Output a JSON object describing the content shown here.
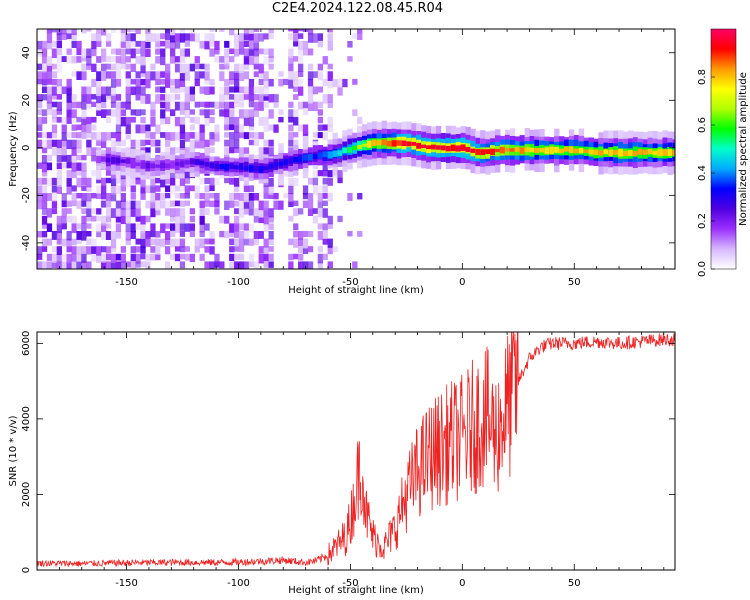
{
  "title": "C2E4.2024.122.08.45.R04",
  "chart_data": [
    {
      "type": "heatmap",
      "xlabel": "Height of straight line (km)",
      "ylabel": "Frequency (Hz)",
      "xlim": [
        -190,
        95
      ],
      "ylim": [
        -51,
        50
      ],
      "xticks": [
        -150,
        -100,
        -50,
        0,
        50
      ],
      "yticks": [
        -40,
        -20,
        0,
        20,
        40
      ],
      "colorbar": {
        "label": "Normalized spectral amplitude",
        "range": [
          0,
          1
        ],
        "ticks": [
          0.0,
          0.2,
          0.4,
          0.6,
          0.8
        ],
        "colormap": [
          "#ffffff",
          "#d6b8ff",
          "#9b30ff",
          "#5000e0",
          "#0000ff",
          "#00aaff",
          "#00ffcc",
          "#00ff00",
          "#b0ff00",
          "#ffff00",
          "#ff9900",
          "#ff0000",
          "#ff0066"
        ]
      },
      "ridge": {
        "x": [
          -160,
          -150,
          -140,
          -130,
          -120,
          -110,
          -100,
          -90,
          -80,
          -70,
          -65,
          -60,
          -55,
          -50,
          -45,
          -40,
          -35,
          -30,
          -25,
          -20,
          -15,
          -10,
          -5,
          0,
          5,
          10,
          15,
          20,
          30,
          40,
          50,
          60,
          70,
          80,
          95
        ],
        "y": [
          -5,
          -6,
          -8,
          -7,
          -6,
          -8,
          -8,
          -9,
          -6,
          -4,
          -3,
          -3,
          -2,
          0,
          1,
          2,
          2,
          2,
          2,
          1,
          0,
          0,
          0,
          0,
          -2,
          -2,
          -1,
          -1,
          -1,
          -1,
          -1,
          -2,
          -2,
          -2,
          -2
        ],
        "amplitude": [
          0.25,
          0.2,
          0.22,
          0.2,
          0.25,
          0.3,
          0.3,
          0.3,
          0.3,
          0.35,
          0.35,
          0.4,
          0.5,
          0.6,
          0.7,
          0.8,
          0.85,
          0.9,
          0.95,
          0.95,
          0.95,
          0.95,
          0.95,
          0.95,
          0.9,
          0.9,
          0.85,
          0.85,
          0.8,
          0.8,
          0.8,
          0.8,
          0.8,
          0.8,
          0.8
        ]
      }
    },
    {
      "type": "line",
      "xlabel": "Height of straight line (km)",
      "ylabel": "SNR (10 * v/v)",
      "xlim": [
        -190,
        95
      ],
      "ylim": [
        0,
        6300
      ],
      "xticks": [
        -150,
        -100,
        -50,
        0,
        50
      ],
      "yticks": [
        0,
        2000,
        4000,
        6000
      ],
      "color": "#ee2222",
      "series": [
        {
          "x": [
            -190,
            -170,
            -150,
            -130,
            -110,
            -100,
            -90,
            -80,
            -70,
            -65,
            -60,
            -55,
            -52,
            -50,
            -47,
            -45,
            -43,
            -40,
            -35,
            -30,
            -25,
            -20,
            -15,
            -10,
            -5,
            0,
            5,
            10,
            15,
            20,
            25,
            30,
            35,
            40,
            50,
            60,
            70,
            80,
            90,
            95
          ],
          "values": [
            180,
            170,
            190,
            200,
            200,
            210,
            230,
            260,
            200,
            250,
            400,
            700,
            900,
            1300,
            2300,
            2900,
            1500,
            900,
            600,
            1100,
            2000,
            2600,
            3000,
            3200,
            3400,
            3500,
            3800,
            4100,
            3600,
            4300,
            5000,
            5600,
            5900,
            6000,
            6000,
            6050,
            6000,
            6050,
            6100,
            6100
          ]
        }
      ]
    }
  ]
}
